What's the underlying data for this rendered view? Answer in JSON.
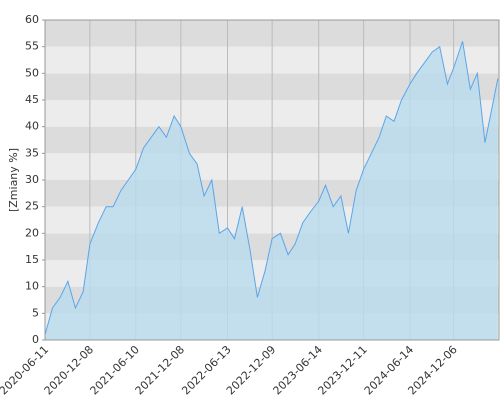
{
  "chart_data": {
    "type": "area",
    "y_label": "[Zmiany %]",
    "x": [
      "2020-06-11",
      "2020-07-11",
      "2020-08-11",
      "2020-09-11",
      "2020-10-11",
      "2020-11-11",
      "2020-12-08",
      "2021-01-11",
      "2021-02-11",
      "2021-03-11",
      "2021-04-11",
      "2021-05-11",
      "2021-06-10",
      "2021-07-11",
      "2021-08-11",
      "2021-09-11",
      "2021-10-11",
      "2021-11-11",
      "2021-12-08",
      "2022-01-11",
      "2022-02-11",
      "2022-03-11",
      "2022-04-11",
      "2022-05-11",
      "2022-06-13",
      "2022-07-11",
      "2022-08-11",
      "2022-09-11",
      "2022-10-11",
      "2022-11-11",
      "2022-12-09",
      "2023-01-11",
      "2023-02-11",
      "2023-03-11",
      "2023-04-11",
      "2023-05-11",
      "2023-06-14",
      "2023-07-11",
      "2023-08-11",
      "2023-09-11",
      "2023-10-11",
      "2023-11-11",
      "2023-12-11",
      "2024-01-11",
      "2024-02-11",
      "2024-03-11",
      "2024-04-11",
      "2024-05-11",
      "2024-06-14",
      "2024-07-11",
      "2024-08-11",
      "2024-09-11",
      "2024-10-11",
      "2024-11-11",
      "2024-12-06",
      "2025-01-11",
      "2025-02-11",
      "2025-03-11",
      "2025-04-11",
      "2025-05-11",
      "2025-06-01"
    ],
    "series": [
      {
        "name": "Zmiany",
        "color": "#5aa5ea",
        "fill": "#b9dcee",
        "values": [
          1,
          6,
          8,
          11,
          6,
          9,
          18,
          22,
          25,
          25,
          28,
          30,
          32,
          36,
          38,
          40,
          38,
          42,
          40,
          35,
          33,
          27,
          30,
          20,
          21,
          19,
          25,
          17,
          8,
          13,
          19,
          20,
          16,
          18,
          22,
          24,
          26,
          29,
          25,
          27,
          20,
          28,
          32,
          35,
          38,
          42,
          41,
          45,
          48,
          50,
          52,
          54,
          55,
          48,
          51,
          56,
          47,
          50,
          37,
          44,
          49
        ]
      }
    ],
    "xlim": [
      "2020-06-11",
      "2025-06-06"
    ],
    "xticks": [
      "2020-06-11",
      "2020-12-08",
      "2021-06-10",
      "2021-12-08",
      "2022-06-13",
      "2022-12-09",
      "2023-06-14",
      "2023-12-11",
      "2024-06-14",
      "2024-12-06"
    ],
    "ylim": [
      0,
      60
    ],
    "yticks": [
      0,
      5,
      10,
      15,
      20,
      25,
      30,
      35,
      40,
      45,
      50,
      55,
      60
    ],
    "grid": true
  }
}
